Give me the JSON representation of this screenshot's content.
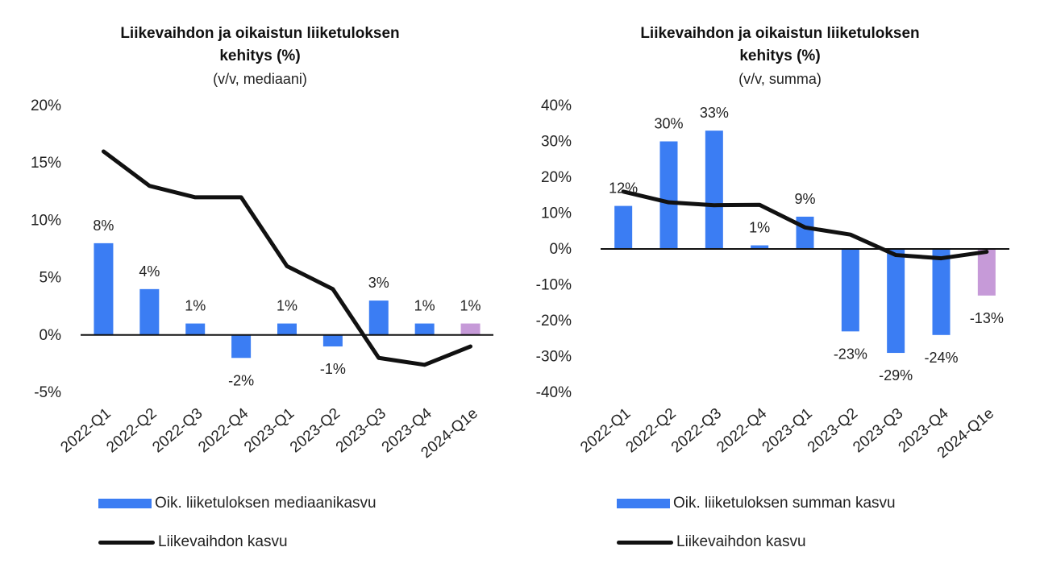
{
  "colors": {
    "bar": "#3b7df3",
    "bar_estimate": "#c69ad8",
    "line": "#111111",
    "zero_line": "#111111",
    "text": "#222222"
  },
  "charts": {
    "left": {
      "title_line1": "Liikevaihdon ja oikaistun liiketuloksen",
      "title_line2": "kehitys (%)",
      "subtitle": "(v/v, mediaani)",
      "legend_bar": "Oik. liiketuloksen mediaanikasvu",
      "legend_line": "Liikevaihdon kasvu"
    },
    "right": {
      "title_line1": "Liikevaihdon ja oikaistun liiketuloksen",
      "title_line2": "kehitys (%)",
      "subtitle": "(v/v, summa)",
      "legend_bar": "Oik. liiketuloksen summan kasvu",
      "legend_line": "Liikevaihdon kasvu"
    }
  },
  "chart_data": [
    {
      "type": "bar",
      "title": "Liikevaihdon ja oikaistun liiketuloksen kehitys (%)",
      "subtitle": "(v/v, mediaani)",
      "categories": [
        "2022-Q1",
        "2022-Q2",
        "2022-Q3",
        "2022-Q4",
        "2023-Q1",
        "2023-Q2",
        "2023-Q3",
        "2023-Q4",
        "2024-Q1e"
      ],
      "series": [
        {
          "name": "Oik. liiketuloksen mediaanikasvu",
          "type": "bar",
          "values": [
            8,
            4,
            1,
            -2,
            1,
            -1,
            3,
            1,
            1
          ],
          "labels": [
            "8%",
            "4%",
            "1%",
            "-2%",
            "1%",
            "-1%",
            "3%",
            "1%",
            "1%"
          ],
          "estimate_last": true
        },
        {
          "name": "Liikevaihdon kasvu",
          "type": "line",
          "values": [
            16,
            13,
            12,
            12,
            6,
            4,
            -2,
            -2.6,
            -1
          ]
        }
      ],
      "ylim": [
        -5,
        20
      ],
      "yticks": [
        -5,
        0,
        5,
        10,
        15,
        20
      ],
      "ytick_labels": [
        "-5%",
        "0%",
        "5%",
        "10%",
        "15%",
        "20%"
      ],
      "legend": "bottom"
    },
    {
      "type": "bar",
      "title": "Liikevaihdon ja oikaistun liiketuloksen kehitys (%)",
      "subtitle": "(v/v, summa)",
      "categories": [
        "2022-Q1",
        "2022-Q2",
        "2022-Q3",
        "2022-Q4",
        "2023-Q1",
        "2023-Q2",
        "2023-Q3",
        "2023-Q4",
        "2024-Q1e"
      ],
      "series": [
        {
          "name": "Oik. liiketuloksen summan kasvu",
          "type": "bar",
          "values": [
            12,
            30,
            33,
            1,
            9,
            -23,
            -29,
            -24,
            -13
          ],
          "labels": [
            "12%",
            "30%",
            "33%",
            "1%",
            "9%",
            "-23%",
            "-29%",
            "-24%",
            "-13%"
          ],
          "estimate_last": true
        },
        {
          "name": "Liikevaihdon kasvu",
          "type": "line",
          "values": [
            16,
            13,
            12.2,
            12.3,
            6,
            4,
            -1.7,
            -2.6,
            -0.8
          ]
        }
      ],
      "ylim": [
        -40,
        40
      ],
      "yticks": [
        -40,
        -30,
        -20,
        -10,
        0,
        10,
        20,
        30,
        40
      ],
      "ytick_labels": [
        "-40%",
        "-30%",
        "-20%",
        "-10%",
        "0%",
        "10%",
        "20%",
        "30%",
        "40%"
      ],
      "legend": "bottom"
    }
  ]
}
